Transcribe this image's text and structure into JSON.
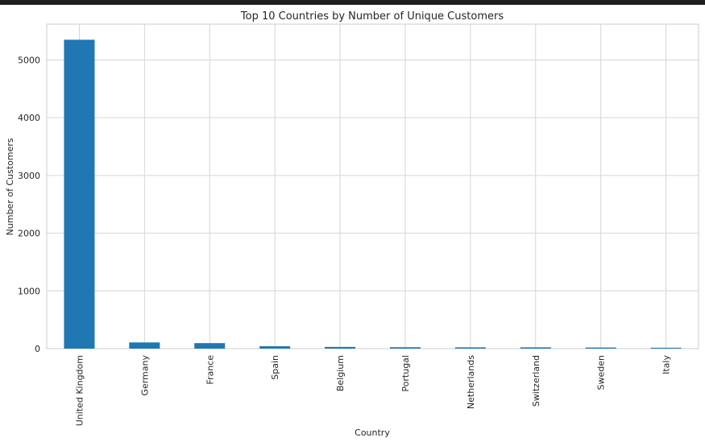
{
  "chart_data": {
    "type": "bar",
    "title": "Top 10 Countries by Number of Unique Customers",
    "xlabel": "Country",
    "ylabel": "Number of Customers",
    "categories": [
      "United Kingdom",
      "Germany",
      "France",
      "Spain",
      "Belgium",
      "Portugal",
      "Netherlands",
      "Switzerland",
      "Sweden",
      "Italy"
    ],
    "values": [
      5350,
      107,
      95,
      41,
      29,
      24,
      22,
      22,
      19,
      15
    ],
    "ylim": [
      0,
      5620
    ],
    "yticks": [
      0,
      1000,
      2000,
      3000,
      4000,
      5000
    ],
    "grid": true,
    "bar_color": "#1f77b4",
    "legend": "none"
  }
}
